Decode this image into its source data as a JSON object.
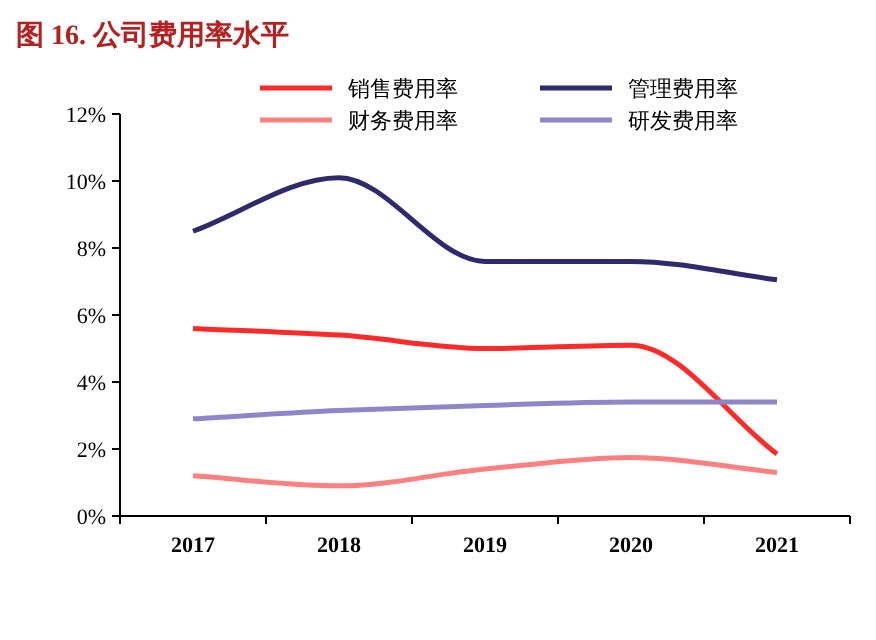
{
  "chart_data": {
    "type": "line",
    "title": "图 16. 公司费用率水平",
    "categories": [
      "2017",
      "2018",
      "2019",
      "2020",
      "2021"
    ],
    "series": [
      {
        "name": "销售费用率",
        "color": "#ff2b2b",
        "values": [
          5.6,
          5.4,
          5.0,
          5.1,
          1.85
        ]
      },
      {
        "name": "管理费用率",
        "color": "#2e2a6b",
        "values": [
          8.5,
          10.1,
          7.6,
          7.6,
          7.05
        ]
      },
      {
        "name": "财务费用率",
        "color": "#ff8080",
        "values": [
          1.2,
          0.9,
          1.4,
          1.75,
          1.3
        ]
      },
      {
        "name": "研发费用率",
        "color": "#8f86c9",
        "values": [
          2.9,
          3.15,
          3.3,
          3.4,
          3.4
        ]
      }
    ],
    "ylim": [
      0,
      12
    ],
    "yticks": [
      {
        "value": 0,
        "label": "0%"
      },
      {
        "value": 2,
        "label": "2%"
      },
      {
        "value": 4,
        "label": "4%"
      },
      {
        "value": 6,
        "label": "6%"
      },
      {
        "value": 8,
        "label": "8%"
      },
      {
        "value": 10,
        "label": "10%"
      },
      {
        "value": 12,
        "label": "12%"
      }
    ],
    "grid": false,
    "legend": "top",
    "marker": "none",
    "line_style": "solid"
  }
}
